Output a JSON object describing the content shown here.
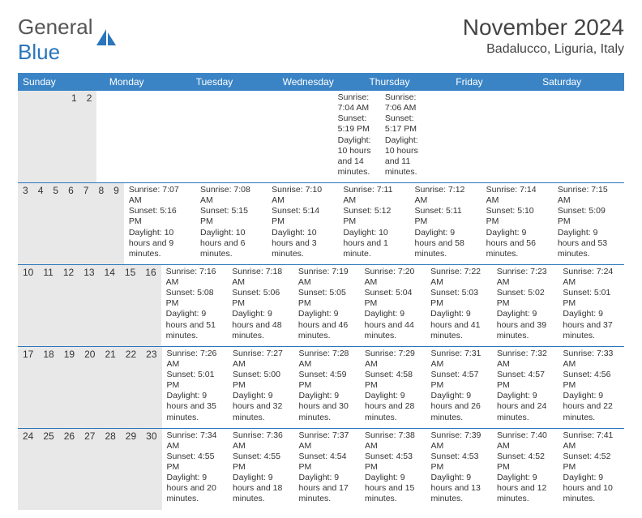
{
  "branding": {
    "logo_part1": "General",
    "logo_part2": "Blue",
    "logo_icon_color": "#2a75bb"
  },
  "heading": {
    "month_title": "November 2024",
    "location": "Badalucco, Liguria, Italy"
  },
  "colors": {
    "header_bg": "#3a84c5",
    "header_text": "#ffffff",
    "daynum_bg": "#e8e8e8",
    "week_border": "#2a75bb",
    "body_text": "#333333"
  },
  "day_names": [
    "Sunday",
    "Monday",
    "Tuesday",
    "Wednesday",
    "Thursday",
    "Friday",
    "Saturday"
  ],
  "weeks": [
    {
      "days": [
        {
          "num": "",
          "sunrise": "",
          "sunset": "",
          "daylight": ""
        },
        {
          "num": "",
          "sunrise": "",
          "sunset": "",
          "daylight": ""
        },
        {
          "num": "",
          "sunrise": "",
          "sunset": "",
          "daylight": ""
        },
        {
          "num": "",
          "sunrise": "",
          "sunset": "",
          "daylight": ""
        },
        {
          "num": "",
          "sunrise": "",
          "sunset": "",
          "daylight": ""
        },
        {
          "num": "1",
          "sunrise": "Sunrise: 7:04 AM",
          "sunset": "Sunset: 5:19 PM",
          "daylight": "Daylight: 10 hours and 14 minutes."
        },
        {
          "num": "2",
          "sunrise": "Sunrise: 7:06 AM",
          "sunset": "Sunset: 5:17 PM",
          "daylight": "Daylight: 10 hours and 11 minutes."
        }
      ]
    },
    {
      "days": [
        {
          "num": "3",
          "sunrise": "Sunrise: 7:07 AM",
          "sunset": "Sunset: 5:16 PM",
          "daylight": "Daylight: 10 hours and 9 minutes."
        },
        {
          "num": "4",
          "sunrise": "Sunrise: 7:08 AM",
          "sunset": "Sunset: 5:15 PM",
          "daylight": "Daylight: 10 hours and 6 minutes."
        },
        {
          "num": "5",
          "sunrise": "Sunrise: 7:10 AM",
          "sunset": "Sunset: 5:14 PM",
          "daylight": "Daylight: 10 hours and 3 minutes."
        },
        {
          "num": "6",
          "sunrise": "Sunrise: 7:11 AM",
          "sunset": "Sunset: 5:12 PM",
          "daylight": "Daylight: 10 hours and 1 minute."
        },
        {
          "num": "7",
          "sunrise": "Sunrise: 7:12 AM",
          "sunset": "Sunset: 5:11 PM",
          "daylight": "Daylight: 9 hours and 58 minutes."
        },
        {
          "num": "8",
          "sunrise": "Sunrise: 7:14 AM",
          "sunset": "Sunset: 5:10 PM",
          "daylight": "Daylight: 9 hours and 56 minutes."
        },
        {
          "num": "9",
          "sunrise": "Sunrise: 7:15 AM",
          "sunset": "Sunset: 5:09 PM",
          "daylight": "Daylight: 9 hours and 53 minutes."
        }
      ]
    },
    {
      "days": [
        {
          "num": "10",
          "sunrise": "Sunrise: 7:16 AM",
          "sunset": "Sunset: 5:08 PM",
          "daylight": "Daylight: 9 hours and 51 minutes."
        },
        {
          "num": "11",
          "sunrise": "Sunrise: 7:18 AM",
          "sunset": "Sunset: 5:06 PM",
          "daylight": "Daylight: 9 hours and 48 minutes."
        },
        {
          "num": "12",
          "sunrise": "Sunrise: 7:19 AM",
          "sunset": "Sunset: 5:05 PM",
          "daylight": "Daylight: 9 hours and 46 minutes."
        },
        {
          "num": "13",
          "sunrise": "Sunrise: 7:20 AM",
          "sunset": "Sunset: 5:04 PM",
          "daylight": "Daylight: 9 hours and 44 minutes."
        },
        {
          "num": "14",
          "sunrise": "Sunrise: 7:22 AM",
          "sunset": "Sunset: 5:03 PM",
          "daylight": "Daylight: 9 hours and 41 minutes."
        },
        {
          "num": "15",
          "sunrise": "Sunrise: 7:23 AM",
          "sunset": "Sunset: 5:02 PM",
          "daylight": "Daylight: 9 hours and 39 minutes."
        },
        {
          "num": "16",
          "sunrise": "Sunrise: 7:24 AM",
          "sunset": "Sunset: 5:01 PM",
          "daylight": "Daylight: 9 hours and 37 minutes."
        }
      ]
    },
    {
      "days": [
        {
          "num": "17",
          "sunrise": "Sunrise: 7:26 AM",
          "sunset": "Sunset: 5:01 PM",
          "daylight": "Daylight: 9 hours and 35 minutes."
        },
        {
          "num": "18",
          "sunrise": "Sunrise: 7:27 AM",
          "sunset": "Sunset: 5:00 PM",
          "daylight": "Daylight: 9 hours and 32 minutes."
        },
        {
          "num": "19",
          "sunrise": "Sunrise: 7:28 AM",
          "sunset": "Sunset: 4:59 PM",
          "daylight": "Daylight: 9 hours and 30 minutes."
        },
        {
          "num": "20",
          "sunrise": "Sunrise: 7:29 AM",
          "sunset": "Sunset: 4:58 PM",
          "daylight": "Daylight: 9 hours and 28 minutes."
        },
        {
          "num": "21",
          "sunrise": "Sunrise: 7:31 AM",
          "sunset": "Sunset: 4:57 PM",
          "daylight": "Daylight: 9 hours and 26 minutes."
        },
        {
          "num": "22",
          "sunrise": "Sunrise: 7:32 AM",
          "sunset": "Sunset: 4:57 PM",
          "daylight": "Daylight: 9 hours and 24 minutes."
        },
        {
          "num": "23",
          "sunrise": "Sunrise: 7:33 AM",
          "sunset": "Sunset: 4:56 PM",
          "daylight": "Daylight: 9 hours and 22 minutes."
        }
      ]
    },
    {
      "days": [
        {
          "num": "24",
          "sunrise": "Sunrise: 7:34 AM",
          "sunset": "Sunset: 4:55 PM",
          "daylight": "Daylight: 9 hours and 20 minutes."
        },
        {
          "num": "25",
          "sunrise": "Sunrise: 7:36 AM",
          "sunset": "Sunset: 4:55 PM",
          "daylight": "Daylight: 9 hours and 18 minutes."
        },
        {
          "num": "26",
          "sunrise": "Sunrise: 7:37 AM",
          "sunset": "Sunset: 4:54 PM",
          "daylight": "Daylight: 9 hours and 17 minutes."
        },
        {
          "num": "27",
          "sunrise": "Sunrise: 7:38 AM",
          "sunset": "Sunset: 4:53 PM",
          "daylight": "Daylight: 9 hours and 15 minutes."
        },
        {
          "num": "28",
          "sunrise": "Sunrise: 7:39 AM",
          "sunset": "Sunset: 4:53 PM",
          "daylight": "Daylight: 9 hours and 13 minutes."
        },
        {
          "num": "29",
          "sunrise": "Sunrise: 7:40 AM",
          "sunset": "Sunset: 4:52 PM",
          "daylight": "Daylight: 9 hours and 12 minutes."
        },
        {
          "num": "30",
          "sunrise": "Sunrise: 7:41 AM",
          "sunset": "Sunset: 4:52 PM",
          "daylight": "Daylight: 9 hours and 10 minutes."
        }
      ]
    }
  ]
}
